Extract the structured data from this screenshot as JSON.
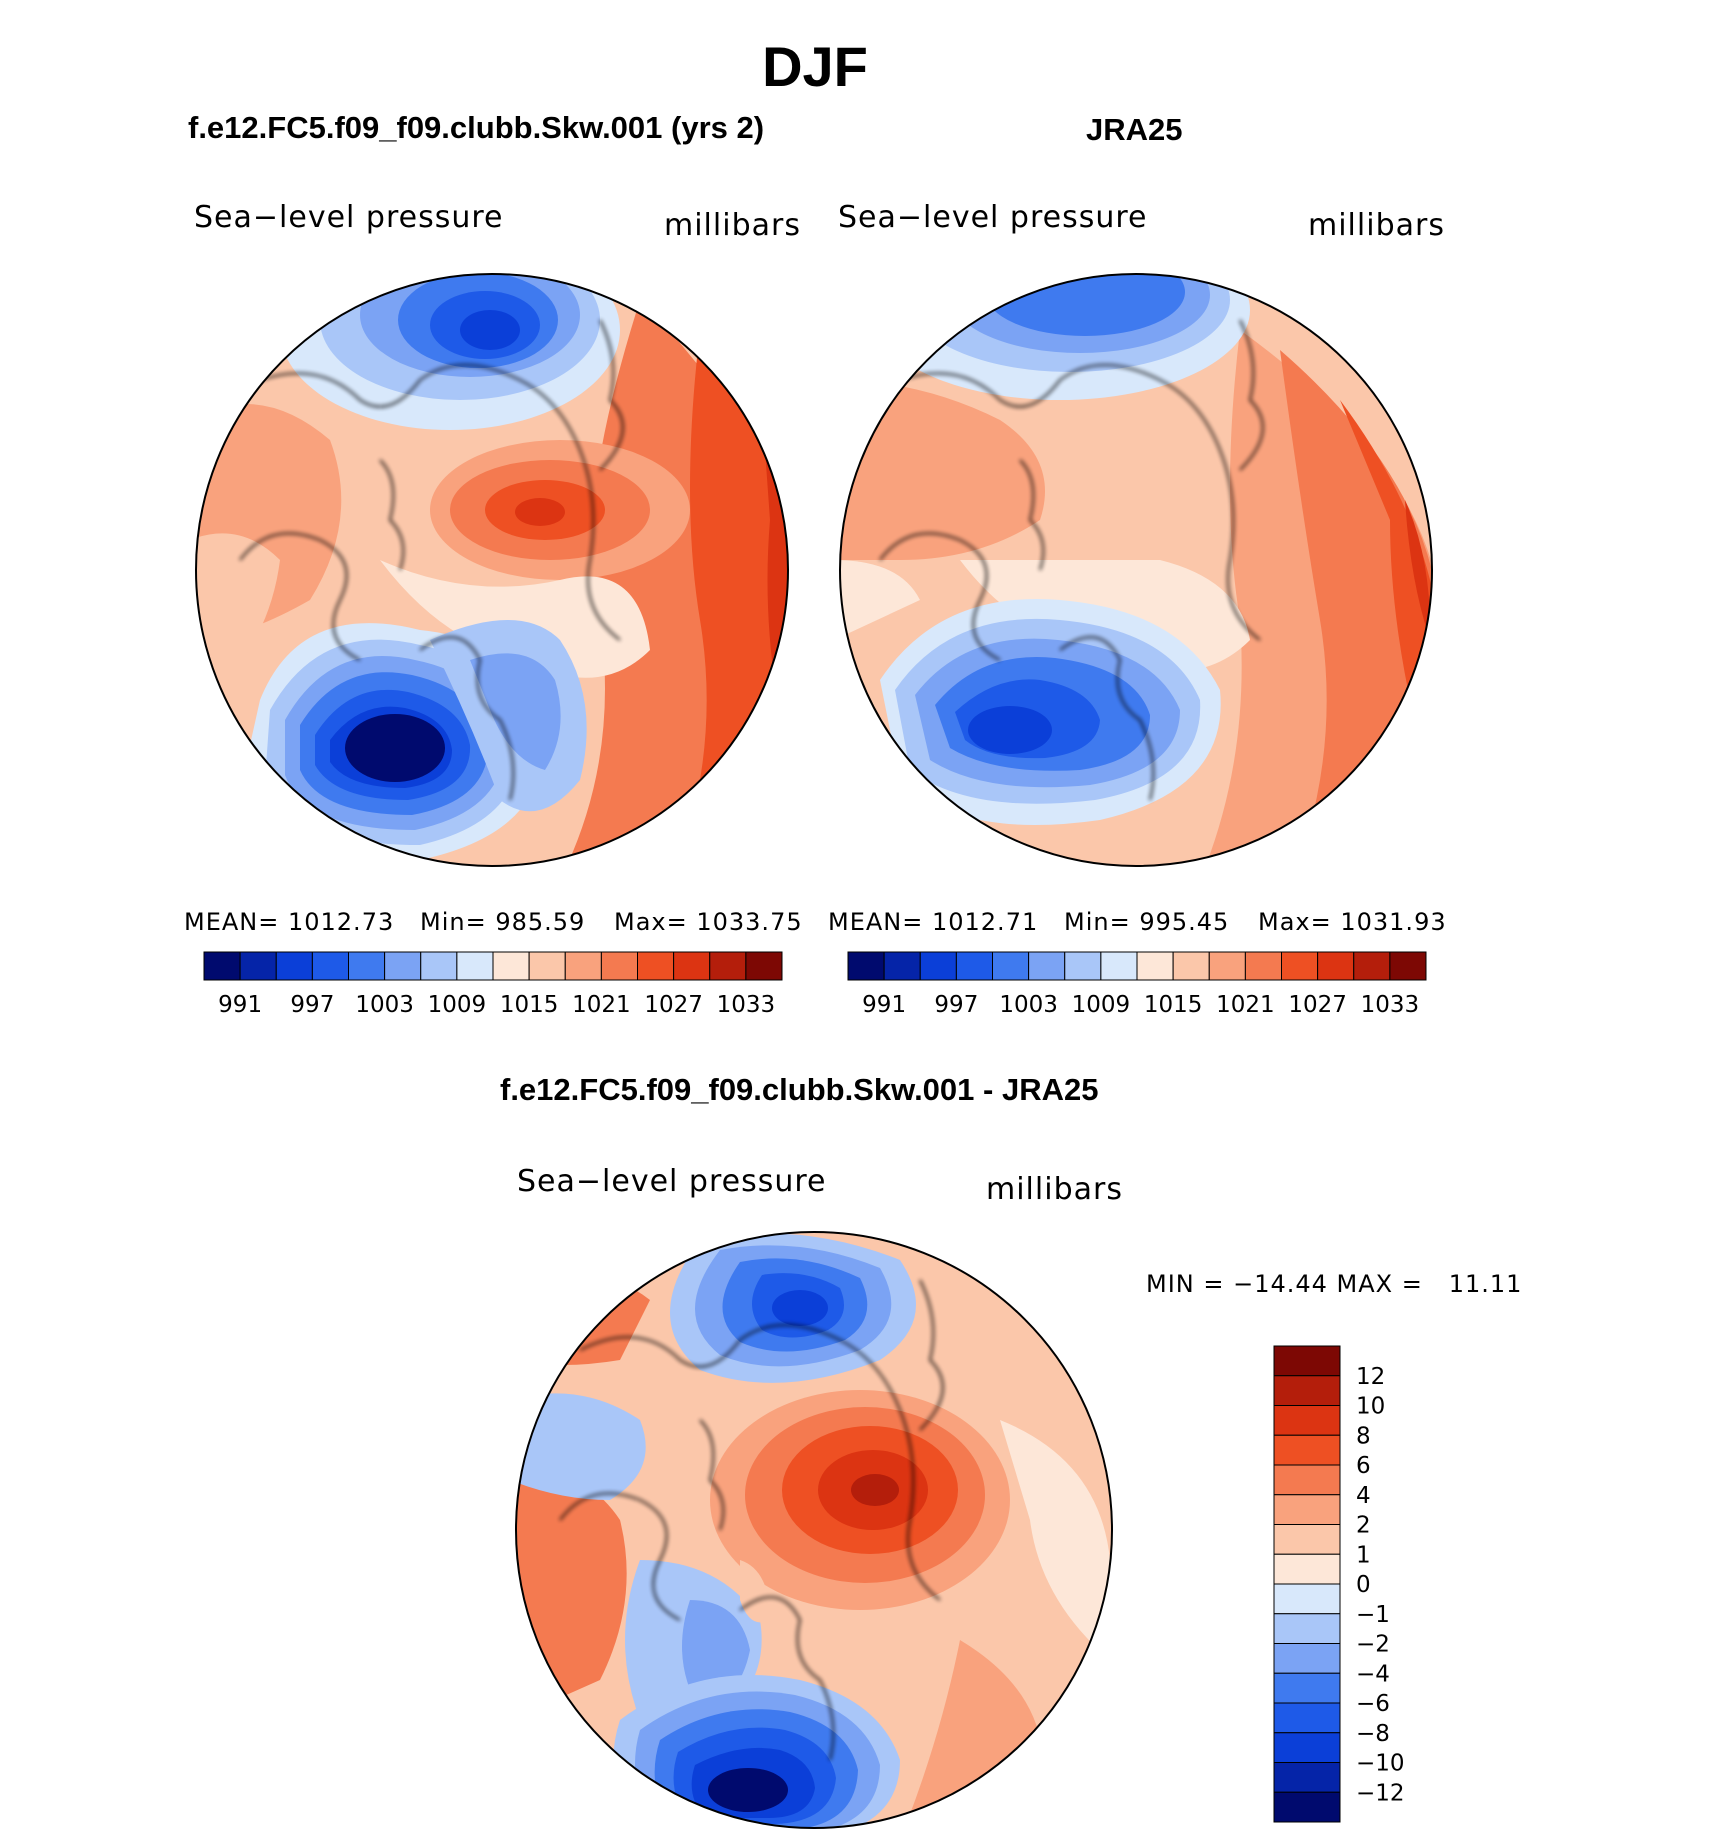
{
  "title": "DJF",
  "panels": [
    {
      "title": "f.e12.FC5.f09_f09.clubb.Skw.001 (yrs 2)",
      "variable": "Sea−level pressure",
      "units": "millibars",
      "stats": {
        "mean": "MEAN= 1012.73",
        "min": "Min= 985.59",
        "max": "Max= 1033.75"
      }
    },
    {
      "title": "JRA25",
      "variable": "Sea−level pressure",
      "units": "millibars",
      "stats": {
        "mean": "MEAN= 1012.71",
        "min": "Min= 995.45",
        "max": "Max= 1031.93"
      }
    },
    {
      "title": "f.e12.FC5.f09_f09.clubb.Skw.001 - JRA25",
      "variable": "Sea−level pressure",
      "units": "millibars",
      "stats": {
        "minmax": "MIN = −14.44 MAX =   11.11"
      }
    }
  ],
  "colorbar_abs": {
    "colors": [
      "#000a6e",
      "#0524a8",
      "#0b3fd8",
      "#1e5ae8",
      "#3f7aef",
      "#7ba3f4",
      "#a9c6f8",
      "#d8e8fb",
      "#fde7d8",
      "#fbc7aa",
      "#f9a27d",
      "#f47a50",
      "#ee5023",
      "#dc3412",
      "#b41e0b",
      "#7d0804"
    ],
    "labels": [
      "991",
      "997",
      "1003",
      "1009",
      "1015",
      "1021",
      "1027",
      "1033"
    ]
  },
  "colorbar_diff": {
    "colors_top_to_bottom": [
      "#7d0804",
      "#b41e0b",
      "#dc3412",
      "#ee5023",
      "#f47a50",
      "#f9a27d",
      "#fbc7aa",
      "#fde7d8",
      "#d8e8fb",
      "#a9c6f8",
      "#7ba3f4",
      "#3f7aef",
      "#1e5ae8",
      "#0b3fd8",
      "#0524a8",
      "#000a6e"
    ],
    "labels_top_to_bottom": [
      "12",
      "10",
      "8",
      "6",
      "4",
      "2",
      "1",
      "0",
      "−1",
      "−2",
      "−4",
      "−6",
      "−8",
      "−10",
      "−12"
    ]
  }
}
